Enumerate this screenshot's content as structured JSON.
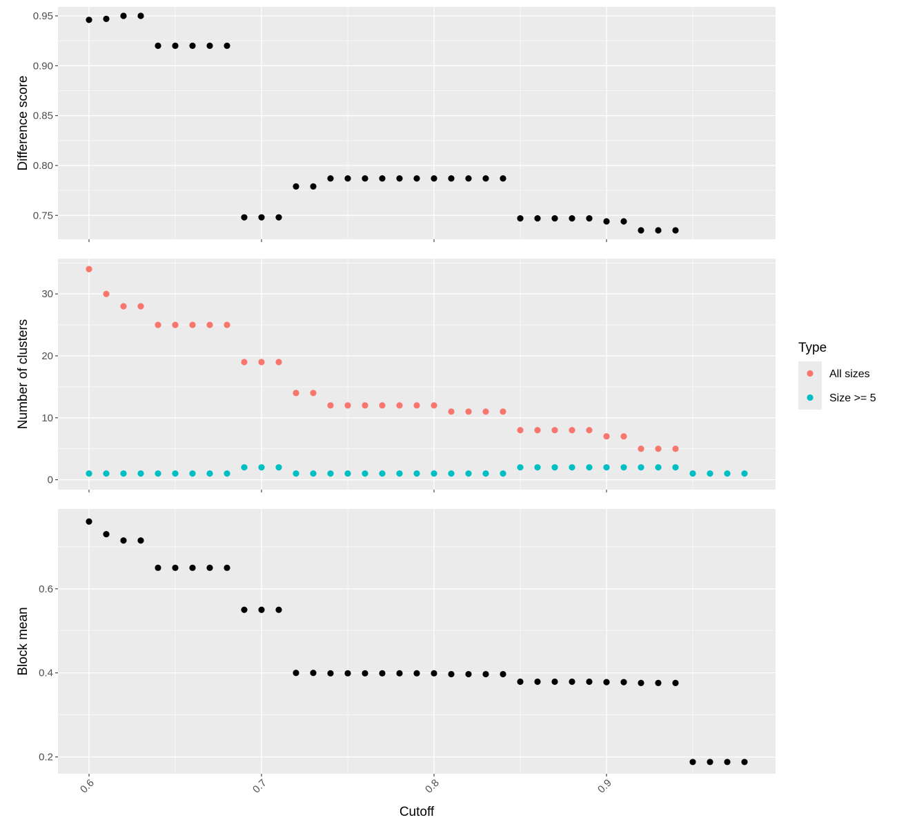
{
  "chart_data": [
    {
      "type": "scatter",
      "ylabel": "Difference score",
      "ylim": [
        0.726,
        0.959
      ],
      "y_ticks": [
        0.75,
        0.8,
        0.85,
        0.9,
        0.95
      ],
      "y_tick_labels": [
        "0.75",
        "0.80",
        "0.85",
        "0.90",
        "0.95"
      ],
      "series": [
        {
          "color": "#000000",
          "x": [
            0.6,
            0.61,
            0.62,
            0.63,
            0.64,
            0.65,
            0.66,
            0.67,
            0.68,
            0.69,
            0.7,
            0.71,
            0.72,
            0.73,
            0.74,
            0.75,
            0.76,
            0.77,
            0.78,
            0.79,
            0.8,
            0.81,
            0.82,
            0.83,
            0.84,
            0.85,
            0.86,
            0.87,
            0.88,
            0.89,
            0.9,
            0.91,
            0.92,
            0.93,
            0.94
          ],
          "y": [
            0.946,
            0.947,
            0.95,
            0.95,
            0.92,
            0.92,
            0.92,
            0.92,
            0.92,
            0.748,
            0.748,
            0.748,
            0.779,
            0.779,
            0.787,
            0.787,
            0.787,
            0.787,
            0.787,
            0.787,
            0.787,
            0.787,
            0.787,
            0.787,
            0.787,
            0.747,
            0.747,
            0.747,
            0.747,
            0.747,
            0.744,
            0.744,
            0.735,
            0.735,
            0.735
          ]
        }
      ]
    },
    {
      "type": "scatter",
      "ylabel": "Number of clusters",
      "ylim": [
        -1.6,
        35.7
      ],
      "y_ticks": [
        0,
        10,
        20,
        30
      ],
      "y_tick_labels": [
        "0",
        "10",
        "20",
        "30"
      ],
      "legend": {
        "title": "Type",
        "position": "right",
        "items": [
          {
            "label": "All sizes",
            "color": "#F8766D"
          },
          {
            "label": "Size >= 5",
            "color": "#00BFC4"
          }
        ]
      },
      "series": [
        {
          "name": "All sizes",
          "color": "#F8766D",
          "x": [
            0.6,
            0.61,
            0.62,
            0.63,
            0.64,
            0.65,
            0.66,
            0.67,
            0.68,
            0.69,
            0.7,
            0.71,
            0.72,
            0.73,
            0.74,
            0.75,
            0.76,
            0.77,
            0.78,
            0.79,
            0.8,
            0.81,
            0.82,
            0.83,
            0.84,
            0.85,
            0.86,
            0.87,
            0.88,
            0.89,
            0.9,
            0.91,
            0.92,
            0.93,
            0.94
          ],
          "y": [
            34,
            30,
            28,
            28,
            25,
            25,
            25,
            25,
            25,
            19,
            19,
            19,
            14,
            14,
            12,
            12,
            12,
            12,
            12,
            12,
            12,
            11,
            11,
            11,
            11,
            8,
            8,
            8,
            8,
            8,
            7,
            7,
            5,
            5,
            5
          ]
        },
        {
          "name": "Size >= 5",
          "color": "#00BFC4",
          "x": [
            0.6,
            0.61,
            0.62,
            0.63,
            0.64,
            0.65,
            0.66,
            0.67,
            0.68,
            0.69,
            0.7,
            0.71,
            0.72,
            0.73,
            0.74,
            0.75,
            0.76,
            0.77,
            0.78,
            0.79,
            0.8,
            0.81,
            0.82,
            0.83,
            0.84,
            0.85,
            0.86,
            0.87,
            0.88,
            0.89,
            0.9,
            0.91,
            0.92,
            0.93,
            0.94,
            0.95,
            0.96,
            0.97,
            0.98
          ],
          "y": [
            1,
            1,
            1,
            1,
            1,
            1,
            1,
            1,
            1,
            2,
            2,
            2,
            1,
            1,
            1,
            1,
            1,
            1,
            1,
            1,
            1,
            1,
            1,
            1,
            1,
            2,
            2,
            2,
            2,
            2,
            2,
            2,
            2,
            2,
            2,
            1,
            1,
            1,
            1
          ]
        }
      ]
    },
    {
      "type": "scatter",
      "xlabel": "Cutoff",
      "ylabel": "Block mean",
      "xlim": [
        0.582,
        0.998
      ],
      "x_ticks": [
        0.6,
        0.7,
        0.8,
        0.9
      ],
      "x_tick_labels": [
        "0.6",
        "0.7",
        "0.8",
        "0.9"
      ],
      "ylim": [
        0.16,
        0.79
      ],
      "y_ticks": [
        0.2,
        0.4,
        0.6
      ],
      "y_tick_labels": [
        "0.2",
        "0.4",
        "0.6"
      ],
      "series": [
        {
          "color": "#000000",
          "x": [
            0.6,
            0.61,
            0.62,
            0.63,
            0.64,
            0.65,
            0.66,
            0.67,
            0.68,
            0.69,
            0.7,
            0.71,
            0.72,
            0.73,
            0.74,
            0.75,
            0.76,
            0.77,
            0.78,
            0.79,
            0.8,
            0.81,
            0.82,
            0.83,
            0.84,
            0.85,
            0.86,
            0.87,
            0.88,
            0.89,
            0.9,
            0.91,
            0.92,
            0.93,
            0.94,
            0.95,
            0.96,
            0.97,
            0.98
          ],
          "y": [
            0.76,
            0.73,
            0.715,
            0.715,
            0.65,
            0.65,
            0.65,
            0.65,
            0.65,
            0.55,
            0.55,
            0.55,
            0.4,
            0.4,
            0.399,
            0.399,
            0.399,
            0.399,
            0.399,
            0.399,
            0.399,
            0.397,
            0.397,
            0.397,
            0.397,
            0.379,
            0.379,
            0.379,
            0.379,
            0.379,
            0.378,
            0.378,
            0.376,
            0.376,
            0.376,
            0.188,
            0.188,
            0.188,
            0.188
          ]
        }
      ]
    }
  ]
}
